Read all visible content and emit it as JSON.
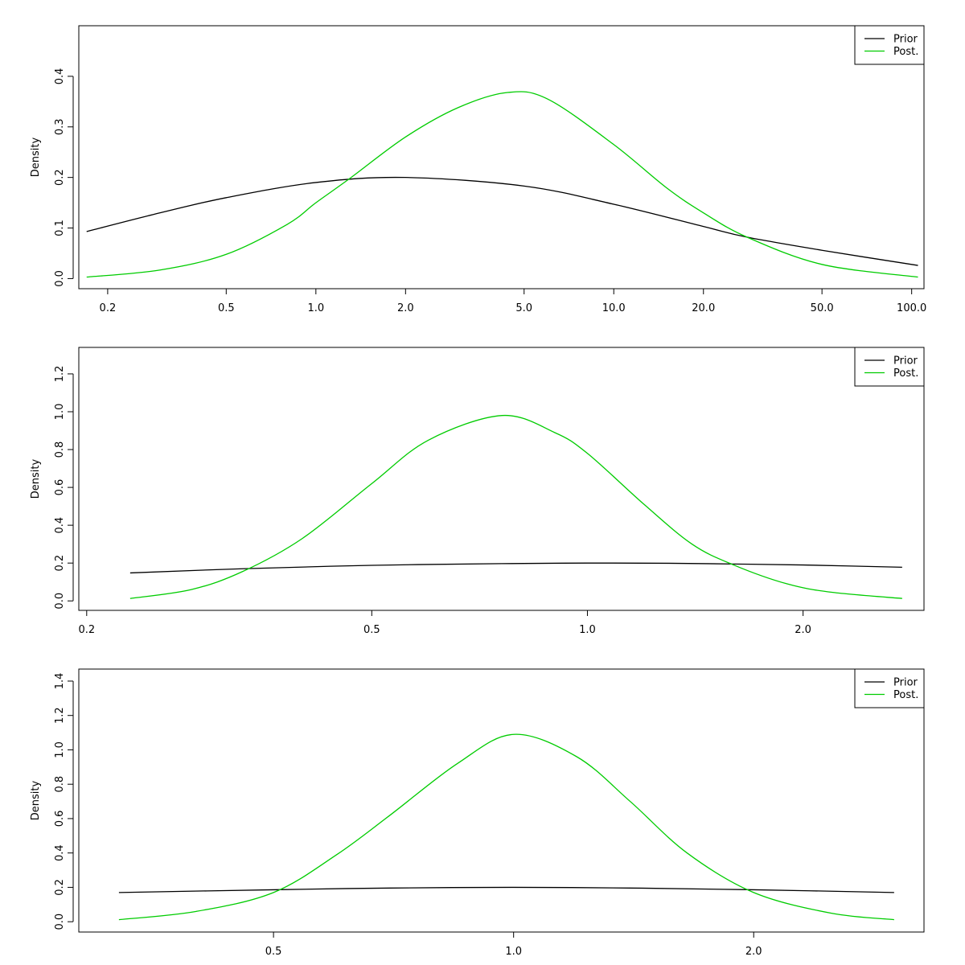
{
  "chart_data": [
    {
      "type": "line",
      "x_scale": "log",
      "xlim": [
        0.16,
        110
      ],
      "ylim": [
        -0.02,
        0.5
      ],
      "xlabel": "",
      "ylabel": "Density",
      "x_ticks": [
        0.2,
        0.5,
        1.0,
        2.0,
        5.0,
        10.0,
        20.0,
        50.0,
        100.0
      ],
      "x_tick_labels": [
        "0.2",
        "0.5",
        "1.0",
        "2.0",
        "5.0",
        "10.0",
        "20.0",
        "50.0",
        "100.0"
      ],
      "y_ticks": [
        0.0,
        0.1,
        0.2,
        0.3,
        0.4
      ],
      "y_tick_labels": [
        "0.0",
        "0.1",
        "0.2",
        "0.3",
        "0.4"
      ],
      "legend": {
        "position": "top-right",
        "entries": [
          "Prior",
          "Post."
        ]
      },
      "series": [
        {
          "name": "Prior",
          "color": "#000000",
          "x": [
            0.17,
            0.3,
            0.5,
            1.0,
            2.0,
            5.0,
            10.0,
            20.0,
            28.0,
            50.0,
            105.0
          ],
          "y": [
            0.093,
            0.13,
            0.16,
            0.19,
            0.2,
            0.183,
            0.147,
            0.103,
            0.082,
            0.056,
            0.026
          ]
        },
        {
          "name": "Post.",
          "color": "#00cc00",
          "x": [
            0.17,
            0.3,
            0.5,
            0.8,
            1.0,
            1.3,
            2.0,
            3.0,
            4.4,
            6.0,
            10.0,
            15.0,
            20.0,
            28.0,
            50.0,
            105.0
          ],
          "y": [
            0.003,
            0.017,
            0.048,
            0.107,
            0.15,
            0.198,
            0.28,
            0.338,
            0.368,
            0.355,
            0.265,
            0.18,
            0.13,
            0.082,
            0.028,
            0.003
          ]
        }
      ]
    },
    {
      "type": "line",
      "x_scale": "log",
      "xlim": [
        0.195,
        2.95
      ],
      "ylim": [
        -0.05,
        1.34
      ],
      "xlabel": "",
      "ylabel": "Density",
      "x_ticks": [
        0.2,
        0.5,
        1.0,
        2.0
      ],
      "x_tick_labels": [
        "0.2",
        "0.5",
        "1.0",
        "2.0"
      ],
      "y_ticks": [
        0.0,
        0.2,
        0.4,
        0.6,
        0.8,
        1.0,
        1.2
      ],
      "y_tick_labels": [
        "0.0",
        "0.2",
        "0.4",
        "0.6",
        "0.8",
        "1.0",
        "1.2"
      ],
      "legend": {
        "position": "top-right",
        "entries": [
          "Prior",
          "Post."
        ]
      },
      "series": [
        {
          "name": "Prior",
          "color": "#000000",
          "x": [
            0.23,
            0.33,
            0.5,
            0.76,
            1.0,
            1.3,
            1.6,
            2.0,
            2.75
          ],
          "y": [
            0.148,
            0.17,
            0.188,
            0.197,
            0.2,
            0.199,
            0.195,
            0.19,
            0.178
          ]
        },
        {
          "name": "Post.",
          "color": "#00cc00",
          "x": [
            0.23,
            0.28,
            0.33,
            0.4,
            0.5,
            0.6,
            0.76,
            0.9,
            1.0,
            1.2,
            1.4,
            1.6,
            1.9,
            2.2,
            2.75
          ],
          "y": [
            0.013,
            0.06,
            0.155,
            0.33,
            0.62,
            0.85,
            0.98,
            0.89,
            0.78,
            0.51,
            0.3,
            0.19,
            0.09,
            0.045,
            0.013
          ]
        }
      ]
    },
    {
      "type": "line",
      "x_scale": "log",
      "xlim": [
        0.285,
        3.27
      ],
      "ylim": [
        -0.06,
        1.47
      ],
      "xlabel": "",
      "ylabel": "Density",
      "x_ticks": [
        0.5,
        1.0,
        2.0
      ],
      "x_tick_labels": [
        "0.5",
        "1.0",
        "2.0"
      ],
      "y_ticks": [
        0.0,
        0.2,
        0.4,
        0.6,
        0.8,
        1.0,
        1.2,
        1.4
      ],
      "y_tick_labels": [
        "0.0",
        "0.2",
        "0.4",
        "0.6",
        "0.8",
        "1.0",
        "1.2",
        "1.4"
      ],
      "legend": {
        "position": "top-right",
        "entries": [
          "Prior",
          "Post."
        ]
      },
      "series": [
        {
          "name": "Prior",
          "color": "#000000",
          "x": [
            0.32,
            0.5,
            0.7,
            1.0,
            1.4,
            2.0,
            3.0
          ],
          "y": [
            0.17,
            0.186,
            0.196,
            0.2,
            0.196,
            0.186,
            0.17
          ]
        },
        {
          "name": "Post.",
          "color": "#00cc00",
          "x": [
            0.32,
            0.4,
            0.5,
            0.6,
            0.7,
            0.85,
            1.0,
            1.2,
            1.4,
            1.65,
            2.0,
            2.5,
            3.0
          ],
          "y": [
            0.012,
            0.06,
            0.17,
            0.39,
            0.62,
            0.92,
            1.09,
            0.96,
            0.7,
            0.4,
            0.17,
            0.05,
            0.012
          ]
        }
      ]
    }
  ]
}
